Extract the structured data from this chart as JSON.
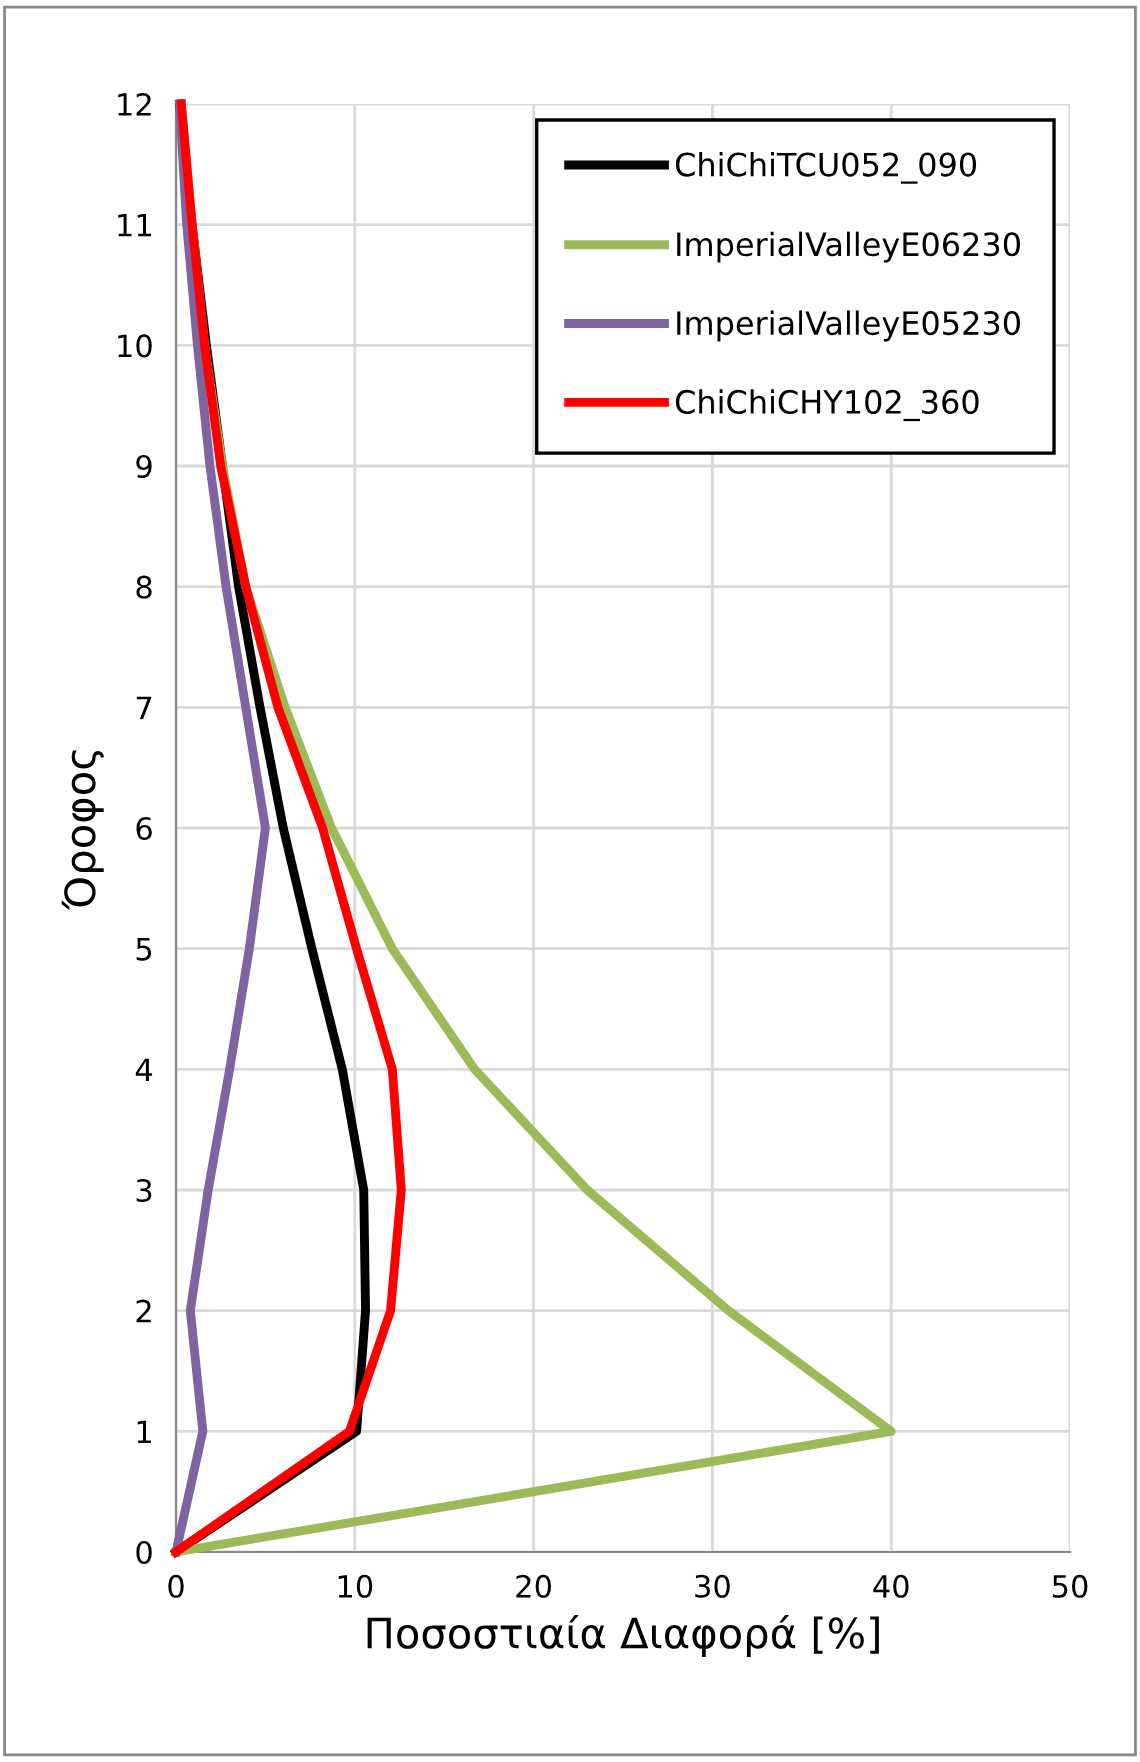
{
  "chart_data": {
    "type": "line",
    "xlabel": "Ποσοστιαία Διαφορά [%]",
    "ylabel": "Όροφος",
    "xlim": [
      0,
      50
    ],
    "xticks": [
      0,
      10,
      20,
      30,
      40,
      50
    ],
    "ylim": [
      0,
      12
    ],
    "yticks": [
      0,
      1,
      2,
      3,
      4,
      5,
      6,
      7,
      8,
      9,
      10,
      11,
      12
    ],
    "grid": true,
    "legend": "top right",
    "marker": "none",
    "line_style": "solid",
    "series": [
      {
        "name": "ChiChiTCU052_090",
        "color": "#000000",
        "x": [
          0,
          10.1,
          10.6,
          10.5,
          9.3,
          7.6,
          6.0,
          4.7,
          3.5,
          2.6,
          1.7,
          0.9,
          0.2
        ],
        "values": [
          0,
          1,
          2,
          3,
          4,
          5,
          6,
          7,
          8,
          9,
          10,
          11,
          12
        ]
      },
      {
        "name": "ImperialValleyE06230",
        "color": "#9bbb59",
        "x": [
          0,
          40,
          30.9,
          23.0,
          16.7,
          12.1,
          8.7,
          6.1,
          3.9,
          2.6,
          1.6,
          0.9,
          0.3
        ],
        "values": [
          0,
          1,
          2,
          3,
          4,
          5,
          6,
          7,
          8,
          9,
          10,
          11,
          12
        ]
      },
      {
        "name": "ImperialValleyE05230",
        "color": "#8064a2",
        "x": [
          0,
          1.5,
          0.8,
          1.8,
          3.0,
          4.1,
          5.0,
          3.9,
          2.8,
          1.9,
          1.2,
          0.6,
          0.2
        ],
        "values": [
          0,
          1,
          2,
          3,
          4,
          5,
          6,
          7,
          8,
          9,
          10,
          11,
          12
        ]
      },
      {
        "name": "ChiChiCHY102_360",
        "color": "#ff0000",
        "x": [
          0,
          9.7,
          12.0,
          12.6,
          12.1,
          10.1,
          8.2,
          5.7,
          3.9,
          2.5,
          1.6,
          0.9,
          0.3
        ],
        "values": [
          0,
          1,
          2,
          3,
          4,
          5,
          6,
          7,
          8,
          9,
          10,
          11,
          12
        ]
      }
    ]
  }
}
